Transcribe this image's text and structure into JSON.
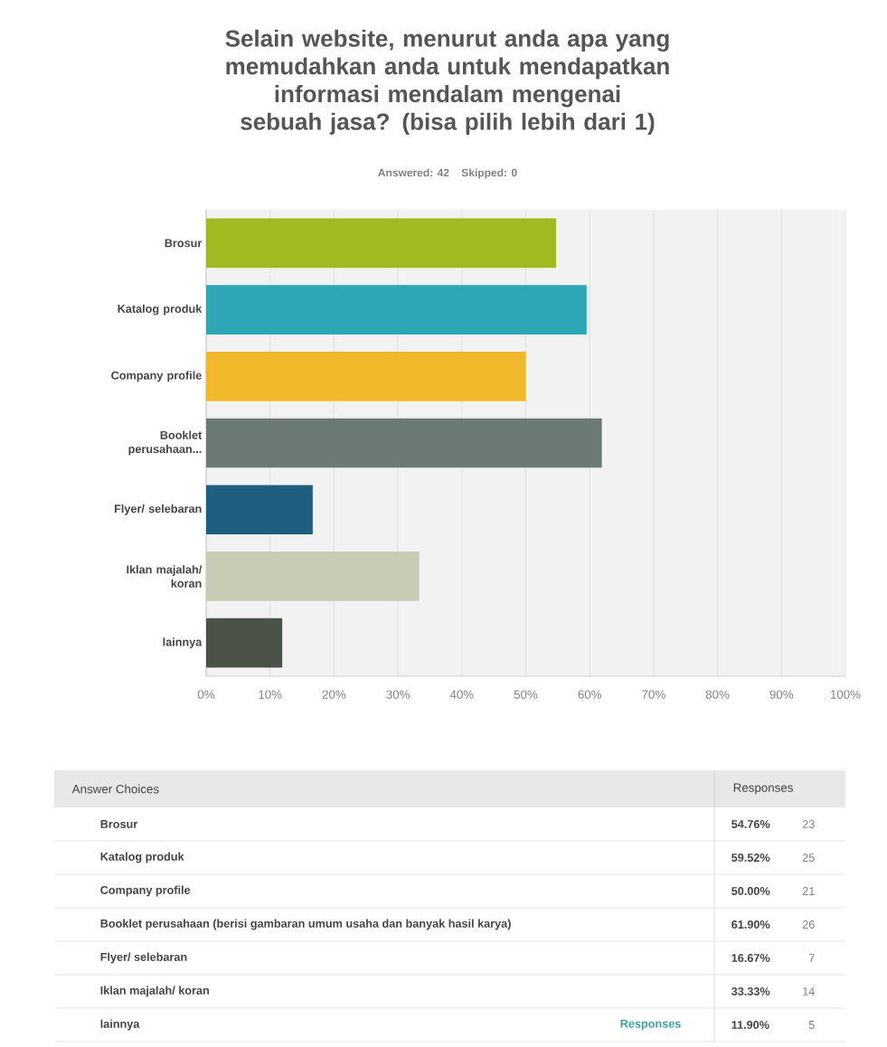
{
  "chart_data": {
    "type": "bar",
    "orientation": "horizontal",
    "title": "Selain website, menurut anda apa yang memudahkan anda untuk mendapatkan informasi mendalam mengenai sebuah jasa? (bisa pilih lebih dari 1)",
    "subtitle": "Answered: 42    Skipped: 0",
    "categories": [
      "Brosur",
      "Katalog produk",
      "Company profile",
      "Booklet perusahaan...",
      "Flyer/ selebaran",
      "Iklan majalah/ koran",
      "lainnya"
    ],
    "values": [
      54.76,
      59.52,
      50.0,
      61.9,
      16.67,
      33.33,
      11.9
    ],
    "colors": [
      "#a2ba1f",
      "#2ea6b5",
      "#f0b82a",
      "#6b7a74",
      "#1e5f80",
      "#c9ccb4",
      "#4a5248"
    ],
    "xlim": [
      0,
      100
    ],
    "xticks": [
      {
        "value": 0,
        "label": "0%"
      },
      {
        "value": 10,
        "label": "10%"
      },
      {
        "value": 20,
        "label": "20%"
      },
      {
        "value": 30,
        "label": "30%"
      },
      {
        "value": 40,
        "label": "40%"
      },
      {
        "value": 50,
        "label": "50%"
      },
      {
        "value": 60,
        "label": "60%"
      },
      {
        "value": 70,
        "label": "70%"
      },
      {
        "value": 80,
        "label": "80%"
      },
      {
        "value": 90,
        "label": "90%"
      },
      {
        "value": 100,
        "label": "100%"
      }
    ],
    "grid": "x",
    "annotations": [
      "Answer Choices",
      "Responses",
      "Brosur",
      "Katalog produk",
      "Company profile",
      "Booklet perusahaan (berisi gambaran umum usaha dan banyak hasil karya)",
      "Flyer/ selebaran",
      "Iklan majalah/ koran",
      "lainnya",
      "54.76%",
      "59.52%",
      "50.00%",
      "61.90%",
      "16.67%",
      "33.33%",
      "11.90%",
      "23",
      "25",
      "21",
      "26",
      "7",
      "14",
      "5",
      "Responses"
    ]
  }
}
